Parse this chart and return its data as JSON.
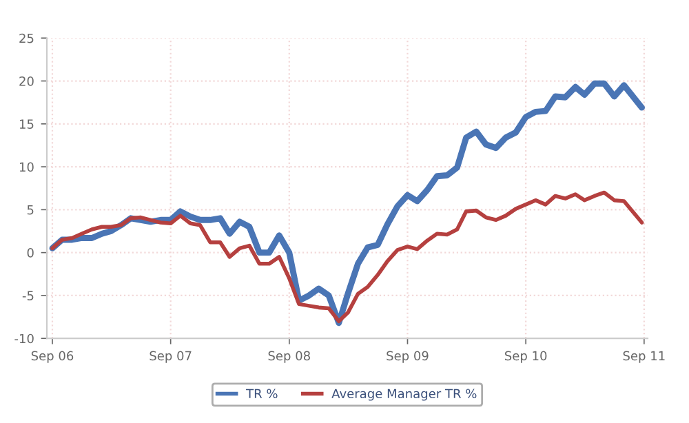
{
  "chart_data": {
    "type": "line",
    "x": [
      "2006-09",
      "2006-10",
      "2006-11",
      "2006-12",
      "2007-01",
      "2007-02",
      "2007-03",
      "2007-04",
      "2007-05",
      "2007-06",
      "2007-07",
      "2007-08",
      "2007-09",
      "2007-10",
      "2007-11",
      "2007-12",
      "2008-01",
      "2008-02",
      "2008-03",
      "2008-04",
      "2008-05",
      "2008-06",
      "2008-07",
      "2008-08",
      "2008-09",
      "2008-10",
      "2008-11",
      "2008-12",
      "2009-01",
      "2009-02",
      "2009-03",
      "2009-04",
      "2009-05",
      "2009-06",
      "2009-07",
      "2009-08",
      "2009-09",
      "2009-10",
      "2009-11",
      "2009-12",
      "2010-01",
      "2010-02",
      "2010-03",
      "2010-04",
      "2010-05",
      "2010-06",
      "2010-07",
      "2010-08",
      "2010-09",
      "2010-10",
      "2010-11",
      "2010-12",
      "2011-01",
      "2011-02",
      "2011-03",
      "2011-04",
      "2011-05",
      "2011-06",
      "2011-07",
      "2011-08-25"
    ],
    "series": [
      {
        "name": "TR %",
        "color": "#4a75b5",
        "values": [
          0.5,
          1.5,
          1.5,
          1.7,
          1.7,
          2.2,
          2.5,
          3.2,
          4.0,
          3.8,
          3.6,
          3.8,
          3.8,
          4.8,
          4.2,
          3.8,
          3.8,
          4.0,
          2.2,
          3.6,
          3.0,
          0.0,
          0.0,
          2.0,
          0.0,
          -5.6,
          -5.0,
          -4.2,
          -5.0,
          -8.2,
          -4.8,
          -1.3,
          0.6,
          0.9,
          3.3,
          5.4,
          6.7,
          6.0,
          7.3,
          8.9,
          9.0,
          9.9,
          13.4,
          14.1,
          12.6,
          12.2,
          13.4,
          14.0,
          15.8,
          16.4,
          16.5,
          18.2,
          18.1,
          19.3,
          18.4,
          19.7,
          19.7,
          18.2,
          19.5,
          16.9
        ]
      },
      {
        "name": "Average Manager TR %",
        "color": "#b5403f",
        "values": [
          0.5,
          1.5,
          1.7,
          2.2,
          2.7,
          3.0,
          3.0,
          3.2,
          4.0,
          4.1,
          3.8,
          3.5,
          3.4,
          4.3,
          3.4,
          3.2,
          1.2,
          1.2,
          -0.5,
          0.5,
          0.8,
          -1.3,
          -1.3,
          -0.5,
          -3.0,
          -6.0,
          -6.2,
          -6.4,
          -6.5,
          -8.0,
          -7.0,
          -4.8,
          -4.0,
          -2.6,
          -1.0,
          0.3,
          0.7,
          0.4,
          1.4,
          2.2,
          2.1,
          2.7,
          4.8,
          4.9,
          4.1,
          3.8,
          4.3,
          5.1,
          5.6,
          6.1,
          5.6,
          6.6,
          6.3,
          6.8,
          6.1,
          6.6,
          7.0,
          6.1,
          6.0,
          3.5
        ]
      }
    ],
    "xlim": [
      "2006-08-15",
      "2011-09-12"
    ],
    "xticks": [
      {
        "value": "2006-09",
        "label": "Sep 06"
      },
      {
        "value": "2007-09",
        "label": "Sep 07"
      },
      {
        "value": "2008-09",
        "label": "Sep 08"
      },
      {
        "value": "2009-09",
        "label": "Sep 09"
      },
      {
        "value": "2010-09",
        "label": "Sep 10"
      },
      {
        "value": "2011-09",
        "label": "Sep 11"
      }
    ],
    "ylim": [
      -10,
      25
    ],
    "yticks": [
      -10,
      -5,
      0,
      5,
      10,
      15,
      20,
      25
    ],
    "grid": true,
    "legend": "bottom",
    "marker": "none",
    "line_style": "solid"
  }
}
